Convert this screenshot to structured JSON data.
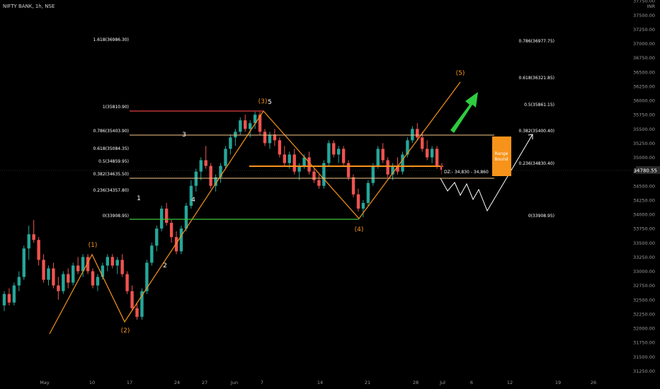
{
  "header": {
    "ticker": "NIFTY BANK, 1h, NSE"
  },
  "colors": {
    "background": "#000000",
    "bull": "#26a69a",
    "bear": "#ef5350",
    "wave_line": "#f7931a",
    "fib_line": "#f9c98a",
    "fib_top": "#e04040",
    "fib_zero": "#3cc83c",
    "dz_line": "#f7931a",
    "arrow": "#2ecc40",
    "range_box": "#f7931a"
  },
  "chart_data": {
    "type": "candlestick",
    "currency": "INR",
    "current_price": "34780.55",
    "y_axis_ticks": [
      "37750.00",
      "37500.00",
      "37250.00",
      "37000.00",
      "36750.00",
      "36500.00",
      "36250.00",
      "36000.00",
      "35750.00",
      "35500.00",
      "35250.00",
      "35000.00",
      "34750.00",
      "34500.00",
      "34250.00",
      "34000.00",
      "33750.00",
      "33500.00",
      "33250.00",
      "33000.00",
      "32750.00",
      "32500.00",
      "32250.00",
      "32000.00",
      "31750.00",
      "31500.00",
      "31250.00"
    ],
    "x_axis_ticks": [
      "May",
      "10",
      "17",
      "24",
      "27",
      "Jun",
      "7",
      "14",
      "21",
      "28",
      "Jul",
      "6",
      "12",
      "19",
      "26"
    ],
    "fib_retracement_left": [
      {
        "label": "1.618(36986.30)",
        "price": 36986.3
      },
      {
        "label": "1(35810.90)",
        "price": 35810.9
      },
      {
        "label": "0.786(35403.90)",
        "price": 35403.9
      },
      {
        "label": "0.618(35084.35)",
        "price": 35084.35
      },
      {
        "label": "0.5(34859.95)",
        "price": 34859.95
      },
      {
        "label": "0.382(34635.50)",
        "price": 34635.5
      },
      {
        "label": "0.236(34357.80)",
        "price": 34357.8
      },
      {
        "label": "0(33908.95)",
        "price": 33908.95
      }
    ],
    "fib_extension_right": [
      {
        "label": "0.786(36977.75)",
        "price": 36977.75
      },
      {
        "label": "0.618(36321.85)",
        "price": 36321.85
      },
      {
        "label": "0.5(35861.15)",
        "price": 35861.15
      },
      {
        "label": "0.382(35400.40)",
        "price": 35400.4
      },
      {
        "label": "0.236(34830.40)",
        "price": 34830.4
      },
      {
        "label": "0(33908.95)",
        "price": 33908.95
      }
    ],
    "wave_labels_orange": [
      "(1)",
      "(2)",
      "(3)",
      "(4)",
      "(5)"
    ],
    "wave_labels_white": [
      "1",
      "2",
      "3",
      "4",
      "5"
    ],
    "demand_zone": "DZ:- 34,830 - 34,860",
    "range_box_text": [
      "Range",
      "Bound"
    ],
    "candles": [
      [
        32400,
        32650,
        32300,
        32600
      ],
      [
        32600,
        32700,
        32400,
        32450
      ],
      [
        32450,
        32800,
        32400,
        32750
      ],
      [
        32750,
        33000,
        32650,
        32900
      ],
      [
        32900,
        33450,
        32850,
        33400
      ],
      [
        33400,
        33800,
        33200,
        33650
      ],
      [
        33650,
        33900,
        33500,
        33550
      ],
      [
        33550,
        33600,
        33100,
        33200
      ],
      [
        33200,
        33300,
        32800,
        32850
      ],
      [
        32850,
        33100,
        32750,
        33050
      ],
      [
        33050,
        33150,
        32700,
        32750
      ],
      [
        32750,
        32900,
        32500,
        32650
      ],
      [
        32650,
        33000,
        32600,
        32950
      ],
      [
        32950,
        33050,
        32700,
        32800
      ],
      [
        32800,
        33150,
        32750,
        33100
      ],
      [
        33100,
        33250,
        32950,
        33000
      ],
      [
        33000,
        33300,
        32900,
        33250
      ],
      [
        33250,
        33300,
        32950,
        33000
      ],
      [
        33000,
        33050,
        32700,
        32750
      ],
      [
        32750,
        32950,
        32650,
        32900
      ],
      [
        32900,
        33150,
        32850,
        33100
      ],
      [
        33100,
        33300,
        33000,
        33250
      ],
      [
        33250,
        33300,
        33050,
        33100
      ],
      [
        33100,
        33250,
        32950,
        33200
      ],
      [
        33200,
        33300,
        32900,
        32950
      ],
      [
        32950,
        33000,
        32600,
        32650
      ],
      [
        32650,
        32750,
        32300,
        32350
      ],
      [
        32350,
        32450,
        32150,
        32200
      ],
      [
        32200,
        32700,
        32150,
        32650
      ],
      [
        32650,
        33200,
        32600,
        33150
      ],
      [
        33150,
        33500,
        33100,
        33450
      ],
      [
        33450,
        33800,
        33350,
        33750
      ],
      [
        33750,
        34150,
        33700,
        34100
      ],
      [
        34100,
        34200,
        33800,
        33850
      ],
      [
        33850,
        33900,
        33500,
        33600
      ],
      [
        33600,
        33700,
        33300,
        33350
      ],
      [
        33350,
        33800,
        33300,
        33750
      ],
      [
        33750,
        34200,
        33700,
        34150
      ],
      [
        34150,
        34600,
        34100,
        34500
      ],
      [
        34500,
        34800,
        34400,
        34750
      ],
      [
        34750,
        35000,
        34600,
        34950
      ],
      [
        34950,
        35200,
        34800,
        34850
      ],
      [
        34850,
        34900,
        34450,
        34500
      ],
      [
        34500,
        34700,
        34400,
        34650
      ],
      [
        34650,
        34900,
        34550,
        34850
      ],
      [
        34850,
        35200,
        34800,
        35150
      ],
      [
        35150,
        35400,
        35050,
        35350
      ],
      [
        35350,
        35500,
        35200,
        35450
      ],
      [
        35450,
        35700,
        35400,
        35650
      ],
      [
        35650,
        35750,
        35450,
        35500
      ],
      [
        35500,
        35650,
        35350,
        35600
      ],
      [
        35600,
        35800,
        35500,
        35750
      ],
      [
        35750,
        35800,
        35400,
        35450
      ],
      [
        35450,
        35500,
        35200,
        35250
      ],
      [
        35250,
        35450,
        35150,
        35400
      ],
      [
        35400,
        35500,
        35200,
        35300
      ],
      [
        35300,
        35350,
        35000,
        35050
      ],
      [
        35050,
        35200,
        34850,
        34900
      ],
      [
        34900,
        35100,
        34800,
        35050
      ],
      [
        35050,
        35150,
        34700,
        34750
      ],
      [
        34750,
        34900,
        34600,
        34850
      ],
      [
        34850,
        35050,
        34800,
        35000
      ],
      [
        35000,
        35100,
        34700,
        34750
      ],
      [
        34750,
        34800,
        34550,
        34600
      ],
      [
        34600,
        34700,
        34450,
        34500
      ],
      [
        34500,
        34950,
        34450,
        34900
      ],
      [
        34900,
        35300,
        34850,
        35250
      ],
      [
        35250,
        35300,
        35000,
        35050
      ],
      [
        35050,
        35200,
        34900,
        35150
      ],
      [
        35150,
        35200,
        34850,
        34900
      ],
      [
        34900,
        34950,
        34600,
        34650
      ],
      [
        34650,
        34700,
        34300,
        34350
      ],
      [
        34350,
        34450,
        34050,
        34100
      ],
      [
        34100,
        34250,
        33950,
        34200
      ],
      [
        34200,
        34600,
        34150,
        34550
      ],
      [
        34550,
        34900,
        34500,
        34850
      ],
      [
        34850,
        35200,
        34800,
        35150
      ],
      [
        35150,
        35250,
        34900,
        34950
      ],
      [
        34950,
        35000,
        34650,
        34700
      ],
      [
        34700,
        34900,
        34600,
        34850
      ],
      [
        34850,
        35000,
        34700,
        34750
      ],
      [
        34750,
        35100,
        34700,
        35050
      ],
      [
        35050,
        35350,
        35000,
        35300
      ],
      [
        35300,
        35550,
        35250,
        35500
      ],
      [
        35500,
        35600,
        35300,
        35350
      ],
      [
        35350,
        35450,
        35100,
        35150
      ],
      [
        35150,
        35300,
        34950,
        35000
      ],
      [
        35000,
        35200,
        34900,
        35150
      ],
      [
        35150,
        35200,
        34800,
        34850
      ],
      [
        34850,
        34900,
        34700,
        34780
      ]
    ]
  }
}
